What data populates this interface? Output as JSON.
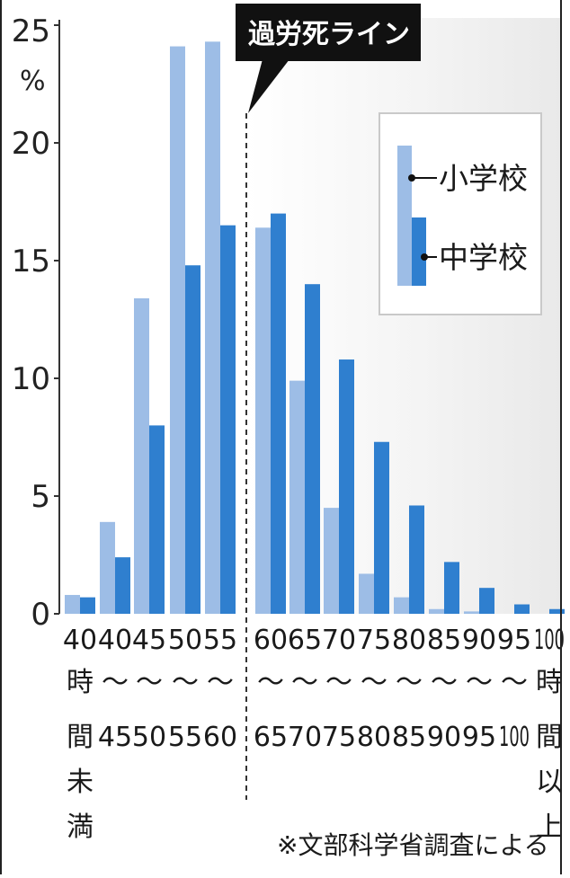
{
  "chart_data": {
    "type": "bar",
    "categories": [
      [
        "40",
        "時",
        "間",
        "未",
        "満"
      ],
      [
        "40",
        "〜",
        "45"
      ],
      [
        "45",
        "〜",
        "50"
      ],
      [
        "50",
        "〜",
        "55"
      ],
      [
        "55",
        "〜",
        "60"
      ],
      [
        "60",
        "〜",
        "65"
      ],
      [
        "65",
        "〜",
        "70"
      ],
      [
        "70",
        "〜",
        "75"
      ],
      [
        "75",
        "〜",
        "80"
      ],
      [
        "80",
        "〜",
        "85"
      ],
      [
        "85",
        "〜",
        "90"
      ],
      [
        "90",
        "〜",
        "95"
      ],
      [
        "95",
        "〜",
        "100"
      ],
      [
        "100",
        "時",
        "間",
        "以",
        "上"
      ]
    ],
    "series": [
      {
        "name": "小学校",
        "color": "#9dbde6",
        "values": [
          0.8,
          3.9,
          13.4,
          24.1,
          24.3,
          16.4,
          9.9,
          4.5,
          1.7,
          0.7,
          0.2,
          0.1,
          0.0,
          0.0
        ]
      },
      {
        "name": "中学校",
        "color": "#2f7fcf",
        "values": [
          0.7,
          2.4,
          8.0,
          14.8,
          16.5,
          17.0,
          14.0,
          10.8,
          7.3,
          4.6,
          2.2,
          1.1,
          0.4,
          0.2
        ]
      }
    ],
    "yticks": [
      "0",
      "5",
      "10",
      "15",
      "20",
      "25"
    ],
    "yunit": "%",
    "ylim": [
      0,
      25
    ],
    "annotation": "過労死ライン",
    "legend_position": "top-right",
    "note": "※文部科学省調査による"
  }
}
